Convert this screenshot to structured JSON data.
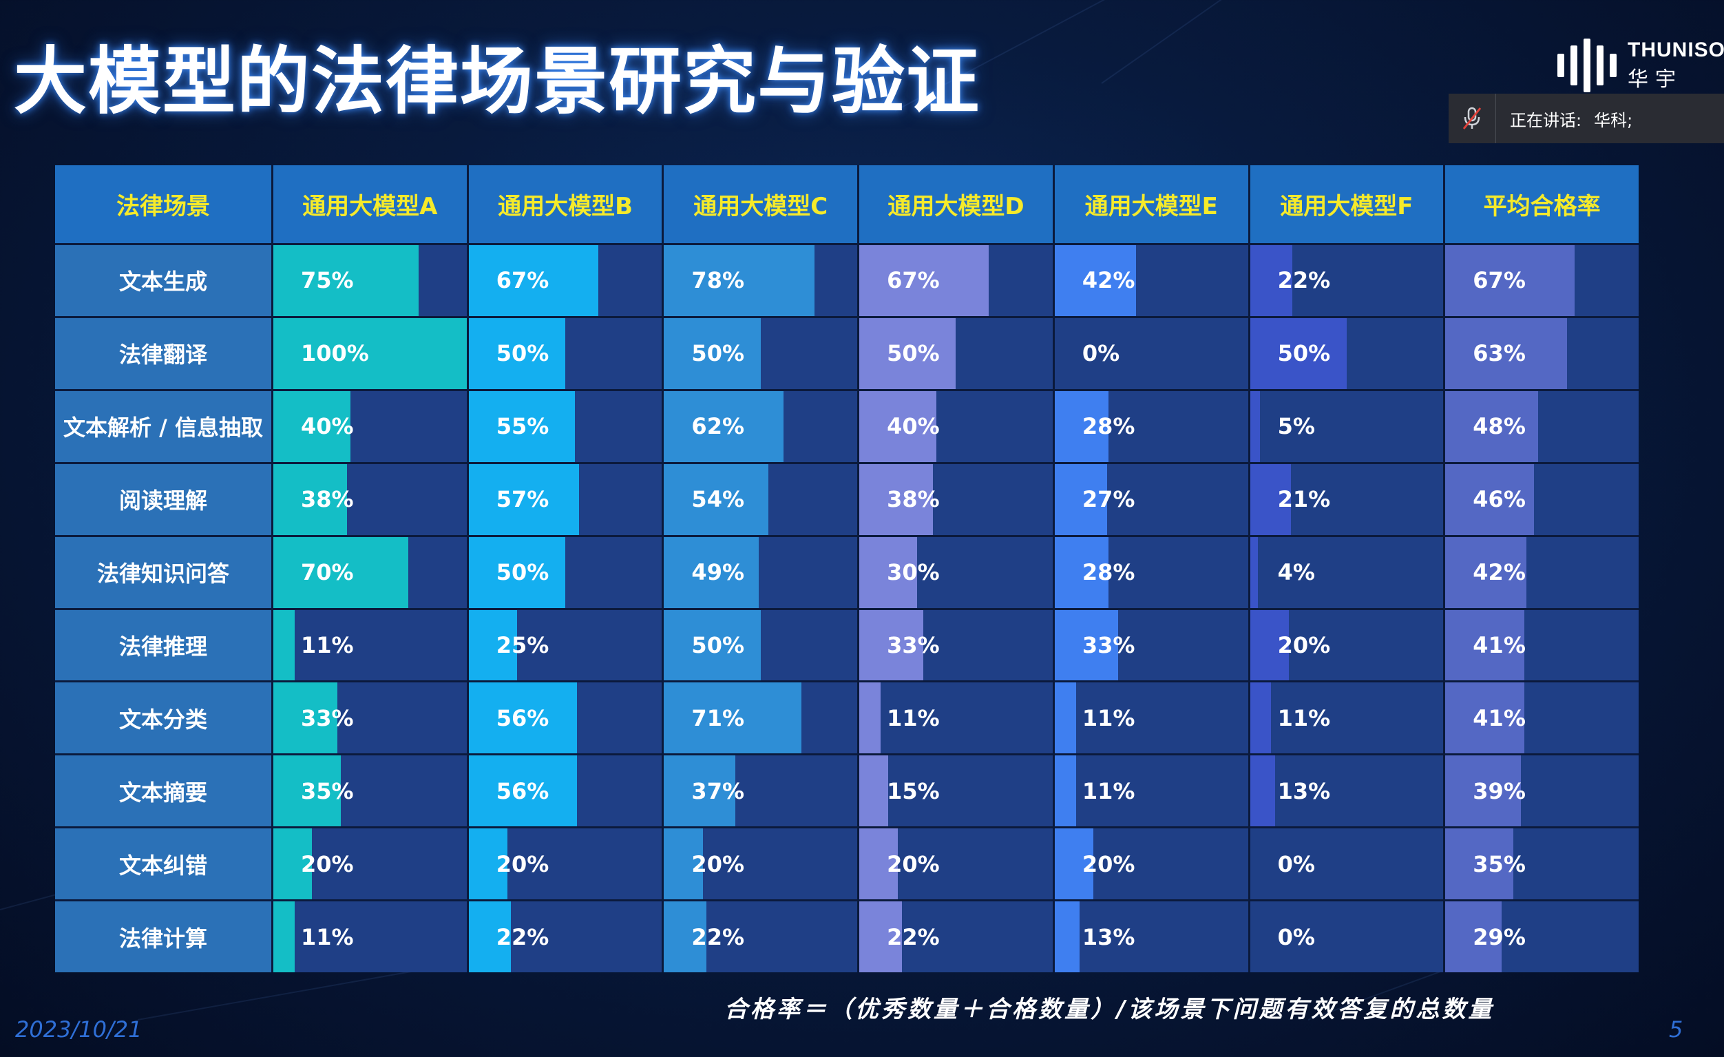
{
  "title": "大模型的法律场景研究与验证",
  "logo": {
    "en": "THUNISOF",
    "cn": "华宇"
  },
  "speaking": {
    "label": "正在讲话:",
    "name": "华科;"
  },
  "table": {
    "headers": [
      "法律场景",
      "通用大模型A",
      "通用大模型B",
      "通用大模型C",
      "通用大模型D",
      "通用大模型E",
      "通用大模型F",
      "平均合格率"
    ],
    "rows": [
      {
        "scene": "文本生成",
        "values": [
          75,
          67,
          78,
          67,
          42,
          22,
          67
        ],
        "labels": [
          "75%",
          "67%",
          "78%",
          "67%",
          "42%",
          "22%",
          "67%"
        ]
      },
      {
        "scene": "法律翻译",
        "values": [
          100,
          50,
          50,
          50,
          0,
          50,
          63
        ],
        "labels": [
          "100%",
          "50%",
          "50%",
          "50%",
          "0%",
          "50%",
          "63%"
        ]
      },
      {
        "scene": "文本解析 / 信息抽取",
        "values": [
          40,
          55,
          62,
          40,
          28,
          5,
          48
        ],
        "labels": [
          "40%",
          "55%",
          "62%",
          "40%",
          "28%",
          "5%",
          "48%"
        ]
      },
      {
        "scene": "阅读理解",
        "values": [
          38,
          57,
          54,
          38,
          27,
          21,
          46
        ],
        "labels": [
          "38%",
          "57%",
          "54%",
          "38%",
          "27%",
          "21%",
          "46%"
        ]
      },
      {
        "scene": "法律知识问答",
        "values": [
          70,
          50,
          49,
          30,
          28,
          4,
          42
        ],
        "labels": [
          "70%",
          "50%",
          "49%",
          "30%",
          "28%",
          "4%",
          "42%"
        ]
      },
      {
        "scene": "法律推理",
        "values": [
          11,
          25,
          50,
          33,
          33,
          20,
          41
        ],
        "labels": [
          "11%",
          "25%",
          "50%",
          "33%",
          "33%",
          "20%",
          "41%"
        ]
      },
      {
        "scene": "文本分类",
        "values": [
          33,
          56,
          71,
          11,
          11,
          11,
          41
        ],
        "labels": [
          "33%",
          "56%",
          "71%",
          "11%",
          "11%",
          "11%",
          "41%"
        ]
      },
      {
        "scene": "文本摘要",
        "values": [
          35,
          56,
          37,
          15,
          11,
          13,
          39
        ],
        "labels": [
          "35%",
          "56%",
          "37%",
          "15%",
          "11%",
          "13%",
          "39%"
        ]
      },
      {
        "scene": "文本纠错",
        "values": [
          20,
          20,
          20,
          20,
          20,
          0,
          35
        ],
        "labels": [
          "20%",
          "20%",
          "20%",
          "20%",
          "20%",
          "0%",
          "35%"
        ]
      },
      {
        "scene": "法律计算",
        "values": [
          11,
          22,
          22,
          22,
          13,
          0,
          29
        ],
        "labels": [
          "11%",
          "22%",
          "22%",
          "22%",
          "13%",
          "0%",
          "29%"
        ]
      }
    ],
    "bar_colors": [
      "#14bec6",
      "#14aff0",
      "#2e8ed6",
      "#7a84da",
      "#3f7ff0",
      "#3a54c8",
      "#5468c4"
    ]
  },
  "formula": "合格率＝（优秀数量＋合格数量）/该场景下问题有效答复的总数量",
  "date": "2023/10/21",
  "page_number": "5"
}
